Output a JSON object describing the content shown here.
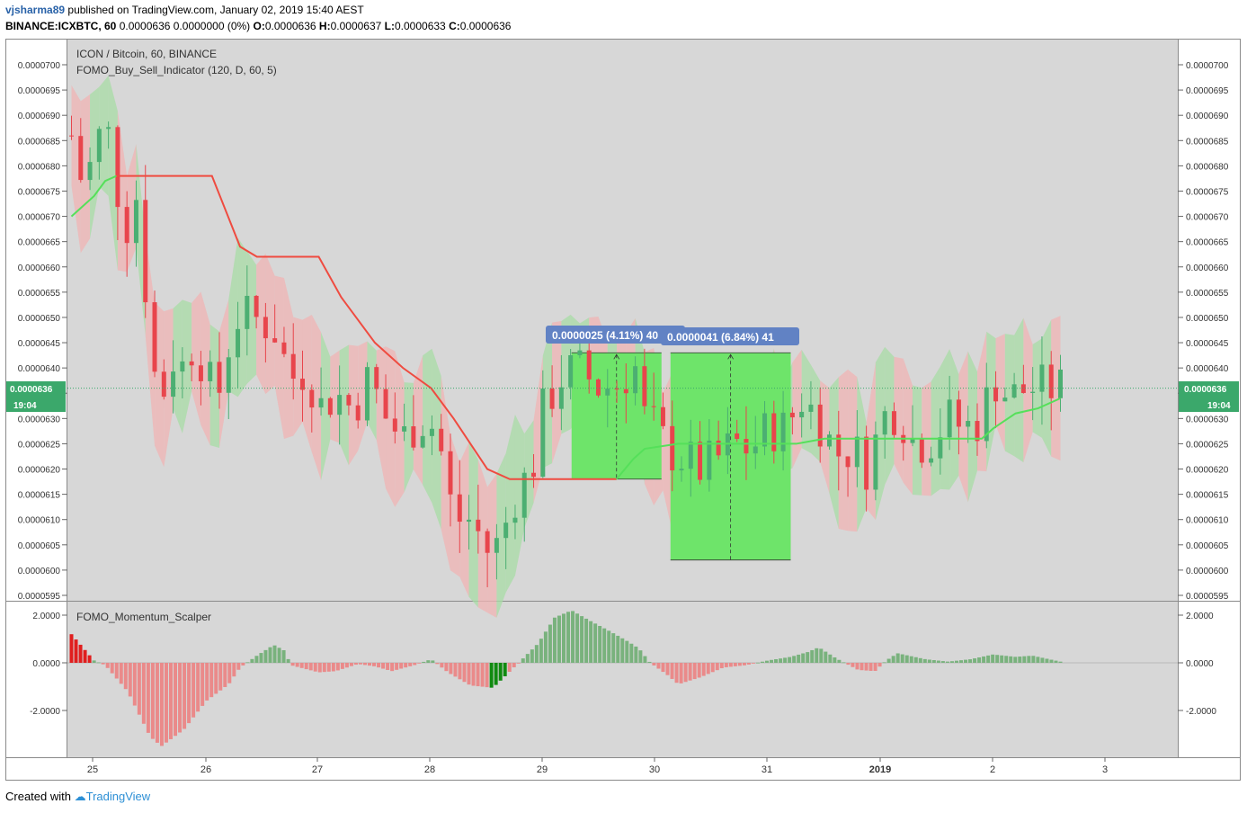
{
  "header": {
    "user": "vjsharma89",
    "published_text": "published on TradingView.com, January 02, 2019 15:40 AEST",
    "symbol": "BINANCE:ICXBTC, 60",
    "quote_values": "0.0000636 0.0000000 (0%)",
    "o_label": "O:",
    "o_value": "0.0000636",
    "h_label": "H:",
    "h_value": "0.0000637",
    "l_label": "L:",
    "l_value": "0.0000633",
    "c_label": "C:",
    "c_value": "0.0000636"
  },
  "chart": {
    "legend_title": "ICON / Bitcoin, 60, BINANCE",
    "indicator_label": "FOMO_Buy_Sell_Indicator (120, D, 60, 5)",
    "momentum_label": "FOMO_Momentum_Scalper",
    "price_badge": "0.0000636",
    "countdown_badge": "19:04",
    "measure1_label": "0.0000025 (4.11%) 40",
    "measure2_label": "0.0000041 (6.84%) 41"
  },
  "colors": {
    "bull": "#4caf72",
    "bear": "#e8454c",
    "band_bull": "#a8dca5",
    "band_bear": "#f0b4b4",
    "stop_red": "#ef4b40",
    "stop_green": "#55e05a",
    "measure_fill": "#6ee46a",
    "measure_label_bg": "#6182c4",
    "badge": "#3ba86b",
    "pane_bg": "#d7d7d7"
  },
  "footer": {
    "created_with": "Created with",
    "brand": "TradingView"
  },
  "chart_data": [
    {
      "type": "candlestick",
      "title": "ICON / Bitcoin, 60, BINANCE",
      "ylim": [
        5.95e-05,
        7e-05
      ],
      "y_ticks": [
        "0.0000595",
        "0.0000600",
        "0.0000605",
        "0.0000610",
        "0.0000615",
        "0.0000620",
        "0.0000625",
        "0.0000630",
        "0.0000635",
        "0.0000640",
        "0.0000645",
        "0.0000650",
        "0.0000655",
        "0.0000660",
        "0.0000665",
        "0.0000670",
        "0.0000675",
        "0.0000680",
        "0.0000685",
        "0.0000690",
        "0.0000695",
        "0.0000700"
      ],
      "x_ticks": [
        "25",
        "26",
        "27",
        "28",
        "29",
        "30",
        "31",
        "2019",
        "2",
        "3"
      ],
      "last_price": 6.36e-05,
      "close_path": [
        [
          24.8,
          6.86e-05
        ],
        [
          24.9,
          6.76e-05
        ],
        [
          25.0,
          6.82e-05
        ],
        [
          25.1,
          6.9e-05
        ],
        [
          25.2,
          6.76e-05
        ],
        [
          25.3,
          6.68e-05
        ],
        [
          25.4,
          6.76e-05
        ],
        [
          25.5,
          6.42e-05
        ],
        [
          25.6,
          6.34e-05
        ],
        [
          25.7,
          6.42e-05
        ],
        [
          25.8,
          6.4e-05
        ],
        [
          25.9,
          6.46e-05
        ],
        [
          26.0,
          6.38e-05
        ],
        [
          26.1,
          6.34e-05
        ],
        [
          26.25,
          6.5e-05
        ],
        [
          26.4,
          6.5e-05
        ],
        [
          26.6,
          6.48e-05
        ],
        [
          26.75,
          6.38e-05
        ],
        [
          26.9,
          6.4e-05
        ],
        [
          27.0,
          6.32e-05
        ],
        [
          27.15,
          6.35e-05
        ],
        [
          27.3,
          6.32e-05
        ],
        [
          27.45,
          6.38e-05
        ],
        [
          27.6,
          6.3e-05
        ],
        [
          27.75,
          6.26e-05
        ],
        [
          27.9,
          6.3e-05
        ],
        [
          28.05,
          6.28e-05
        ],
        [
          28.2,
          6.1e-05
        ],
        [
          28.35,
          6.1e-05
        ],
        [
          28.5,
          6.04e-05
        ],
        [
          28.6,
          6.05e-05
        ],
        [
          28.75,
          6.15e-05
        ],
        [
          28.9,
          6.2e-05
        ],
        [
          29.0,
          6.32e-05
        ],
        [
          29.15,
          6.38e-05
        ],
        [
          29.3,
          6.4e-05
        ],
        [
          29.5,
          6.36e-05
        ],
        [
          29.7,
          6.37e-05
        ],
        [
          29.8,
          6.42e-05
        ],
        [
          29.9,
          6.3e-05
        ],
        [
          30.0,
          6.28e-05
        ],
        [
          30.1,
          6.24e-05
        ],
        [
          30.25,
          6.22e-05
        ],
        [
          30.4,
          6.2e-05
        ],
        [
          30.55,
          6.22e-05
        ],
        [
          30.7,
          6.25e-05
        ],
        [
          30.85,
          6.24e-05
        ],
        [
          31.0,
          6.28e-05
        ],
        [
          31.15,
          6.28e-05
        ],
        [
          31.3,
          6.34e-05
        ],
        [
          31.45,
          6.3e-05
        ],
        [
          31.6,
          6.23e-05
        ],
        [
          31.75,
          6.24e-05
        ],
        [
          31.9,
          6.2e-05
        ],
        [
          32.0,
          6.3e-05
        ],
        [
          32.15,
          6.32e-05
        ],
        [
          32.3,
          6.25e-05
        ],
        [
          32.45,
          6.26e-05
        ],
        [
          32.6,
          6.3e-05
        ],
        [
          32.75,
          6.28e-05
        ],
        [
          32.9,
          6.3e-05
        ],
        [
          33.0,
          6.38e-05
        ],
        [
          33.15,
          6.34e-05
        ],
        [
          33.3,
          6.36e-05
        ],
        [
          33.45,
          6.36e-05
        ],
        [
          33.6,
          6.36e-05
        ]
      ],
      "trailing_stop": [
        [
          24.8,
          6.7e-05
        ],
        [
          24.9,
          6.72e-05
        ],
        [
          25.0,
          6.74e-05
        ],
        [
          25.1,
          6.77e-05
        ],
        [
          25.2,
          6.78e-05
        ],
        [
          26.05,
          6.78e-05
        ],
        [
          26.3,
          6.64e-05
        ],
        [
          26.45,
          6.62e-05
        ],
        [
          27.0,
          6.62e-05
        ],
        [
          27.2,
          6.54e-05
        ],
        [
          27.5,
          6.45e-05
        ],
        [
          27.75,
          6.4e-05
        ],
        [
          28.0,
          6.36e-05
        ],
        [
          28.2,
          6.3e-05
        ],
        [
          28.5,
          6.2e-05
        ],
        [
          28.7,
          6.18e-05
        ],
        [
          29.65,
          6.18e-05
        ],
        [
          29.8,
          6.22e-05
        ],
        [
          29.9,
          6.24e-05
        ],
        [
          30.2,
          6.25e-05
        ],
        [
          31.25,
          6.25e-05
        ],
        [
          31.5,
          6.26e-05
        ],
        [
          32.6,
          6.26e-05
        ],
        [
          32.9,
          6.26e-05
        ],
        [
          33.0,
          6.28e-05
        ],
        [
          33.2,
          6.31e-05
        ],
        [
          33.4,
          6.32e-05
        ],
        [
          33.6,
          6.34e-05
        ]
      ],
      "measures": [
        {
          "label": "0.0000025 (4.11%) 40",
          "x_from": 29.25,
          "x_to": 30.05,
          "y_from": 6.18e-05,
          "y_to": 6.43e-05
        },
        {
          "label": "0.0000041 (6.84%) 41",
          "x_from": 30.13,
          "x_to": 31.2,
          "y_from": 6.02e-05,
          "y_to": 6.43e-05
        }
      ]
    },
    {
      "type": "bar",
      "title": "FOMO_Momentum_Scalper",
      "ylim": [
        -3.8,
        2.4
      ],
      "y_ticks": [
        "2.0000",
        "0.0000",
        "-2.0000"
      ],
      "momentum_path": [
        [
          24.8,
          1.2
        ],
        [
          25.0,
          0.1
        ],
        [
          25.1,
          -0.1
        ],
        [
          25.3,
          -1.2
        ],
        [
          25.5,
          -3.1
        ],
        [
          25.6,
          -3.5
        ],
        [
          25.8,
          -2.8
        ],
        [
          26.0,
          -1.6
        ],
        [
          26.2,
          -0.9
        ],
        [
          26.3,
          -0.2
        ],
        [
          26.45,
          0.3
        ],
        [
          26.6,
          0.75
        ],
        [
          26.7,
          0.5
        ],
        [
          26.75,
          -0.1
        ],
        [
          27.0,
          -0.4
        ],
        [
          27.15,
          -0.35
        ],
        [
          27.35,
          -0.05
        ],
        [
          27.5,
          -0.15
        ],
        [
          27.65,
          -0.35
        ],
        [
          27.85,
          -0.1
        ],
        [
          28.0,
          0.15
        ],
        [
          28.15,
          -0.4
        ],
        [
          28.35,
          -0.95
        ],
        [
          28.55,
          -1.05
        ],
        [
          28.65,
          -0.6
        ],
        [
          28.8,
          0.1
        ],
        [
          28.95,
          0.8
        ],
        [
          29.1,
          1.9
        ],
        [
          29.25,
          2.2
        ],
        [
          29.4,
          1.8
        ],
        [
          29.6,
          1.3
        ],
        [
          29.75,
          0.9
        ],
        [
          29.85,
          0.6
        ],
        [
          29.95,
          0.0
        ],
        [
          30.1,
          -0.5
        ],
        [
          30.2,
          -0.9
        ],
        [
          30.4,
          -0.6
        ],
        [
          30.6,
          -0.2
        ],
        [
          30.8,
          -0.1
        ],
        [
          31.0,
          0.1
        ],
        [
          31.2,
          0.25
        ],
        [
          31.35,
          0.45
        ],
        [
          31.45,
          0.65
        ],
        [
          31.6,
          0.2
        ],
        [
          31.8,
          -0.3
        ],
        [
          31.95,
          -0.35
        ],
        [
          32.05,
          0.1
        ],
        [
          32.15,
          0.4
        ],
        [
          32.4,
          0.15
        ],
        [
          32.6,
          0.05
        ],
        [
          32.8,
          0.15
        ],
        [
          33.0,
          0.35
        ],
        [
          33.2,
          0.25
        ],
        [
          33.35,
          0.3
        ],
        [
          33.6,
          0.05
        ]
      ]
    }
  ]
}
